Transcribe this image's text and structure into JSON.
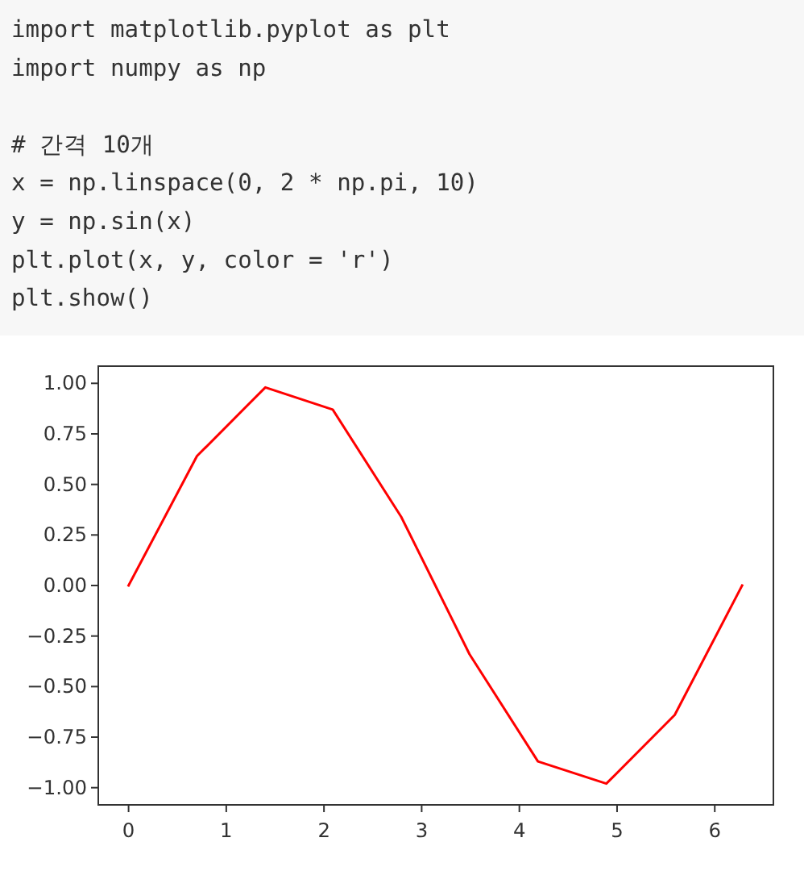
{
  "chart_data": {
    "type": "line",
    "x": [
      0,
      0.7,
      1.4,
      2.09,
      2.79,
      3.49,
      4.19,
      4.89,
      5.59,
      6.28
    ],
    "series": [
      {
        "color": "#ff0000",
        "values": [
          0,
          0.64,
          0.98,
          0.87,
          0.34,
          -0.34,
          -0.87,
          -0.98,
          -0.64,
          0
        ]
      }
    ],
    "xlim": [
      -0.31,
      6.6
    ],
    "ylim": [
      -1.085,
      1.085
    ],
    "xticks": [
      0,
      1,
      2,
      3,
      4,
      5,
      6
    ],
    "yticks": [
      {
        "value": -1,
        "label": "−1.00"
      },
      {
        "value": -0.75,
        "label": "−0.75"
      },
      {
        "value": -0.5,
        "label": "−0.50"
      },
      {
        "value": -0.25,
        "label": "−0.25"
      },
      {
        "value": 0,
        "label": "0.00"
      },
      {
        "value": 0.25,
        "label": "0.25"
      },
      {
        "value": 0.5,
        "label": "0.50"
      },
      {
        "value": 0.75,
        "label": "0.75"
      },
      {
        "value": 1,
        "label": "1.00"
      }
    ],
    "annotations": [
      "import matplotlib.pyplot as plt\nimport numpy as np\n\n# 간격 10개\nx = np.linspace(0, 2 * np.pi, 10)\ny = np.sin(x)\nplt.plot(x, y, color = 'r')\nplt.show()"
    ]
  }
}
